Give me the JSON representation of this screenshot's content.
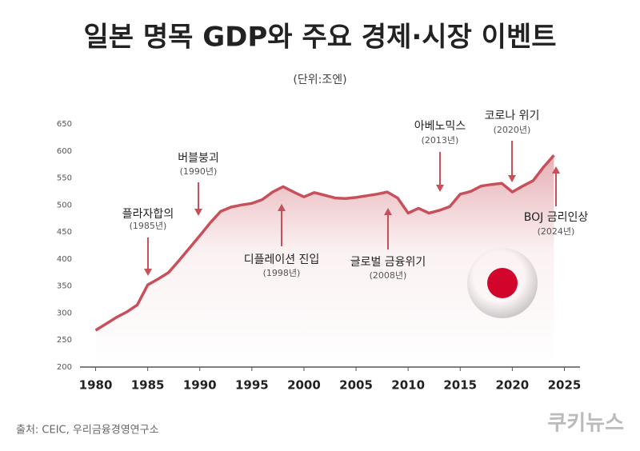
{
  "chart_data": {
    "type": "line",
    "title": "일본 명목 GDP와 주요 경제·시장 이벤트",
    "subtitle": "(단위:조엔)",
    "source": "출처: CEIC, 우리금융경영연구소",
    "logo": "쿠키뉴스",
    "x": [
      1980,
      1981,
      1982,
      1983,
      1984,
      1985,
      1986,
      1987,
      1988,
      1989,
      1990,
      1991,
      1992,
      1993,
      1994,
      1995,
      1996,
      1997,
      1998,
      1999,
      2000,
      2001,
      2002,
      2003,
      2004,
      2005,
      2006,
      2007,
      2008,
      2009,
      2010,
      2011,
      2012,
      2013,
      2014,
      2015,
      2016,
      2017,
      2018,
      2019,
      2020,
      2021,
      2022,
      2023,
      2024
    ],
    "series": [
      {
        "name": "GDP",
        "color": "#c8505a",
        "values": [
          268,
          280,
          292,
          302,
          315,
          352,
          363,
          375,
          397,
          420,
          443,
          467,
          488,
          496,
          500,
          503,
          510,
          524,
          534,
          524,
          515,
          523,
          518,
          513,
          512,
          514,
          517,
          520,
          524,
          513,
          485,
          494,
          485,
          490,
          497,
          520,
          525,
          535,
          538,
          540,
          524,
          535,
          545,
          570,
          592
        ]
      }
    ],
    "xlim": [
      1978.5,
      2026.5
    ],
    "xticks": [
      1980,
      1985,
      1990,
      1995,
      2000,
      2005,
      2010,
      2015,
      2020,
      2025
    ],
    "ylim": [
      200,
      650
    ],
    "yticks": [
      200,
      250,
      300,
      350,
      400,
      450,
      500,
      550,
      600,
      650
    ],
    "grid": false,
    "annotations": [
      {
        "label": "플라자합의",
        "sublabel": "(1985년)"
      },
      {
        "label": "버블붕괴",
        "sublabel": "(1990년)"
      },
      {
        "label": "디플레이션 진입",
        "sublabel": "(1998년)"
      },
      {
        "label": "글로벌 금융위기",
        "sublabel": "(2008년)"
      },
      {
        "label": "아베노믹스",
        "sublabel": "(2013년)"
      },
      {
        "label": "코로나 위기",
        "sublabel": "(2020년)"
      },
      {
        "label": "BOJ 금리인상",
        "sublabel": "(2024년)"
      }
    ]
  }
}
